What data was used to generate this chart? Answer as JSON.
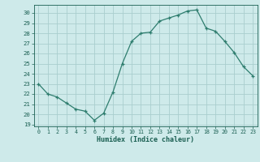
{
  "x": [
    0,
    1,
    2,
    3,
    4,
    5,
    6,
    7,
    8,
    9,
    10,
    11,
    12,
    13,
    14,
    15,
    16,
    17,
    18,
    19,
    20,
    21,
    22,
    23
  ],
  "y": [
    23,
    22,
    21.7,
    21.1,
    20.5,
    20.3,
    19.4,
    20.1,
    22.2,
    25.0,
    27.2,
    28.0,
    28.1,
    29.2,
    29.5,
    29.8,
    30.2,
    30.3,
    28.5,
    28.2,
    27.2,
    26.1,
    24.7,
    23.8
  ],
  "xlim": [
    -0.5,
    23.5
  ],
  "ylim": [
    18.8,
    30.8
  ],
  "yticks": [
    19,
    20,
    21,
    22,
    23,
    24,
    25,
    26,
    27,
    28,
    29,
    30
  ],
  "xticks": [
    0,
    1,
    2,
    3,
    4,
    5,
    6,
    7,
    8,
    9,
    10,
    11,
    12,
    13,
    14,
    15,
    16,
    17,
    18,
    19,
    20,
    21,
    22,
    23
  ],
  "xlabel": "Humidex (Indice chaleur)",
  "line_color": "#2e7d6e",
  "marker": "+",
  "bg_color": "#ceeaea",
  "grid_color": "#aacece",
  "tick_color": "#1a5f52",
  "label_color": "#1a5f52"
}
